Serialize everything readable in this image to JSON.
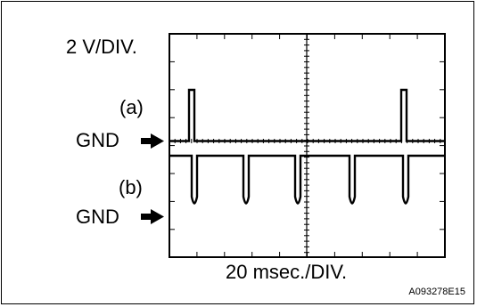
{
  "scale": {
    "voltage": "2 V/DIV.",
    "time": "20 msec./DIV."
  },
  "channels": [
    {
      "label": "(a)",
      "ground_label": "GND"
    },
    {
      "label": "(b)",
      "ground_label": "GND"
    }
  ],
  "figure_code": "A093278E15",
  "icons": {
    "ground_marker": "right-arrow-icon"
  }
}
